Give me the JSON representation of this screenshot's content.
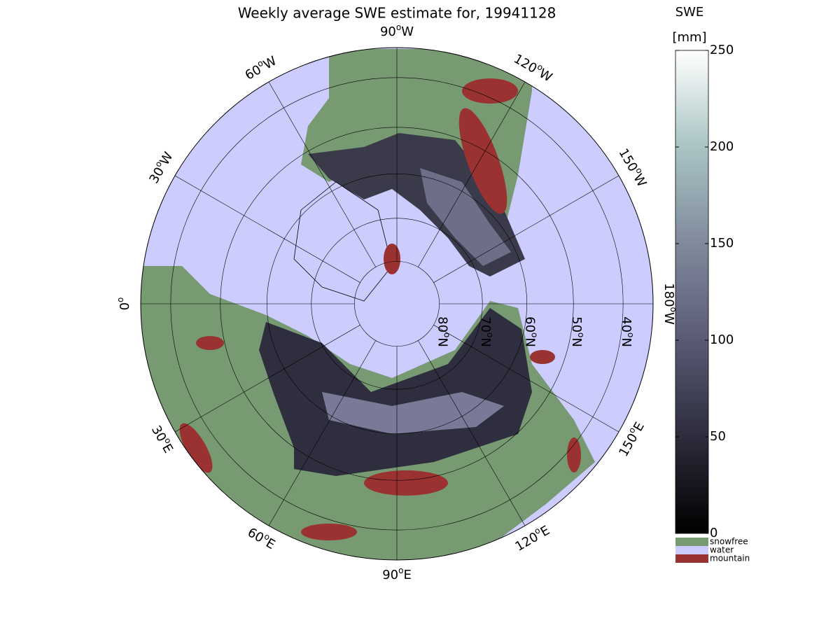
{
  "title": "Weekly average SWE estimate for, 19941128",
  "map": {
    "longitude_labels": [
      {
        "deg": 0,
        "sup": "o",
        "dir": ""
      },
      {
        "deg": 30,
        "sup": "o",
        "dir": "W"
      },
      {
        "deg": 60,
        "sup": "o",
        "dir": "W"
      },
      {
        "deg": 90,
        "sup": "o",
        "dir": "W"
      },
      {
        "deg": 120,
        "sup": "o",
        "dir": "W"
      },
      {
        "deg": 150,
        "sup": "o",
        "dir": "W"
      },
      {
        "deg": 180,
        "sup": "o",
        "dir": "W"
      },
      {
        "deg": 150,
        "sup": "o",
        "dir": "E"
      },
      {
        "deg": 120,
        "sup": "o",
        "dir": "E"
      },
      {
        "deg": 90,
        "sup": "o",
        "dir": "E"
      },
      {
        "deg": 60,
        "sup": "o",
        "dir": "E"
      },
      {
        "deg": 30,
        "sup": "o",
        "dir": "E"
      }
    ],
    "latitude_labels": [
      {
        "deg": 80,
        "sup": "o",
        "dir": "N"
      },
      {
        "deg": 70,
        "sup": "o",
        "dir": "N"
      },
      {
        "deg": 60,
        "sup": "o",
        "dir": "N"
      },
      {
        "deg": 50,
        "sup": "o",
        "dir": "N"
      },
      {
        "deg": 40,
        "sup": "o",
        "dir": "N"
      }
    ]
  },
  "colorbar": {
    "title": "SWE",
    "unit": "[mm]",
    "ylim": [
      0,
      250
    ],
    "yticks": [
      0,
      50,
      100,
      150,
      200,
      250
    ]
  },
  "legend": [
    {
      "label": "snowfree",
      "color": "#789a72"
    },
    {
      "label": "water",
      "color": "#ccccff"
    },
    {
      "label": "mountain",
      "color": "#9a3232"
    }
  ]
}
